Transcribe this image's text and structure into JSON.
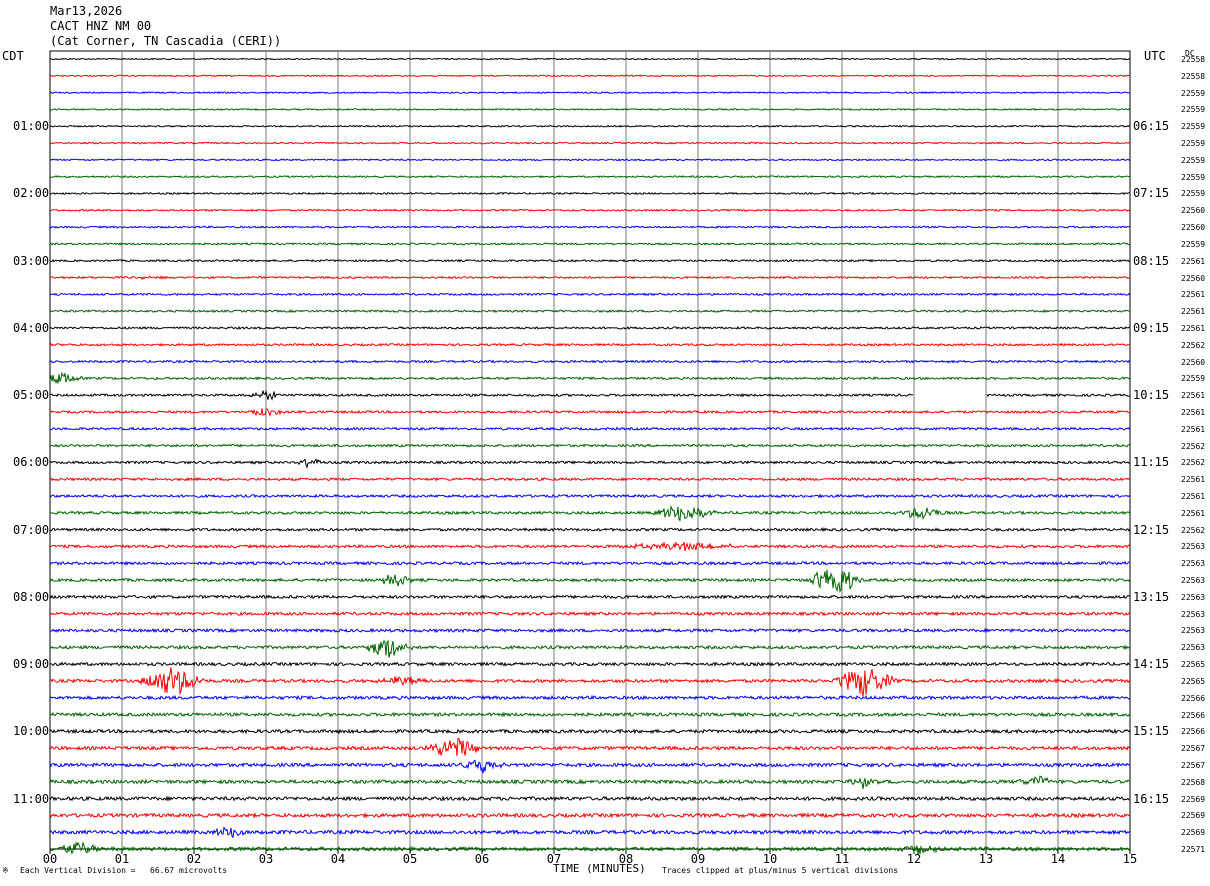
{
  "header": {
    "date": "Mar13,2026",
    "channel": "CACT HNZ NM 00",
    "station": "(Cat Corner, TN Cascadia (CERI))"
  },
  "left_zone": "CDT",
  "right_zone": "UTC",
  "dc_header": "DC",
  "left_time_labels": [
    "01:00",
    "02:00",
    "03:00",
    "04:00",
    "05:00",
    "06:00",
    "07:00",
    "08:00",
    "09:00",
    "10:00",
    "11:00"
  ],
  "right_time_labels": [
    "06:15",
    "07:15",
    "08:15",
    "09:15",
    "10:15",
    "11:15",
    "12:15",
    "13:15",
    "14:15",
    "15:15",
    "16:15"
  ],
  "dc_values": [
    "22558",
    "22558",
    "22559",
    "22559",
    "22559",
    "22559",
    "22559",
    "22559",
    "22559",
    "22560",
    "22560",
    "22559",
    "22561",
    "22560",
    "22561",
    "22561",
    "22561",
    "22562",
    "22560",
    "22559",
    "22561",
    "22561",
    "22561",
    "22562",
    "22562",
    "22561",
    "22561",
    "22561",
    "22562",
    "22563",
    "22563",
    "22563",
    "22563",
    "22563",
    "22563",
    "22563",
    "22565",
    "22565",
    "22566",
    "22566",
    "22566",
    "22567",
    "22567",
    "22568",
    "22569",
    "22569",
    "22569",
    "22571"
  ],
  "footer": {
    "scale_note": "Each Vertical Division =   66.67 microvolts",
    "xlabel": "TIME (MINUTES)",
    "clip_note": "Traces clipped at plus/minus 5 vertical divisions"
  },
  "trace_colors": [
    "#000000",
    "#ff0000",
    "#0000ff",
    "#006400"
  ],
  "chart_data": {
    "type": "line",
    "title": "CACT HNZ NM 00",
    "xlabel": "TIME (MINUTES)",
    "ylabel": "",
    "xlim": [
      0,
      15
    ],
    "x_ticks": [
      "00",
      "01",
      "02",
      "03",
      "04",
      "05",
      "06",
      "07",
      "08",
      "09",
      "10",
      "11",
      "12",
      "13",
      "14",
      "15"
    ],
    "rows": 48,
    "minutes_per_row": 15,
    "grid": true,
    "events": [
      {
        "row": 13,
        "minute": 1.4,
        "amp": 0.3,
        "dur": 0.25
      },
      {
        "row": 19,
        "minute": 0.1,
        "amp": 0.9,
        "dur": 0.4
      },
      {
        "row": 20,
        "minute": 3.0,
        "amp": 0.6,
        "dur": 0.3
      },
      {
        "row": 21,
        "minute": 3.0,
        "amp": 0.5,
        "dur": 0.3
      },
      {
        "row": 24,
        "minute": 3.6,
        "amp": 0.7,
        "dur": 0.2
      },
      {
        "row": 27,
        "minute": 8.8,
        "amp": 1.2,
        "dur": 0.5
      },
      {
        "row": 27,
        "minute": 12.1,
        "amp": 0.9,
        "dur": 0.4
      },
      {
        "row": 29,
        "minute": 8.8,
        "amp": 0.5,
        "dur": 1.0
      },
      {
        "row": 31,
        "minute": 10.9,
        "amp": 2.2,
        "dur": 0.4
      },
      {
        "row": 31,
        "minute": 4.8,
        "amp": 0.8,
        "dur": 0.3
      },
      {
        "row": 35,
        "minute": 4.7,
        "amp": 1.3,
        "dur": 0.4
      },
      {
        "row": 37,
        "minute": 1.7,
        "amp": 2.0,
        "dur": 0.5
      },
      {
        "row": 37,
        "minute": 11.3,
        "amp": 2.0,
        "dur": 0.5
      },
      {
        "row": 37,
        "minute": 4.9,
        "amp": 0.6,
        "dur": 0.4
      },
      {
        "row": 41,
        "minute": 5.6,
        "amp": 1.4,
        "dur": 0.5
      },
      {
        "row": 42,
        "minute": 6.0,
        "amp": 1.0,
        "dur": 0.4
      },
      {
        "row": 43,
        "minute": 11.3,
        "amp": 0.8,
        "dur": 0.3
      },
      {
        "row": 43,
        "minute": 13.7,
        "amp": 0.7,
        "dur": 0.3
      },
      {
        "row": 46,
        "minute": 2.5,
        "amp": 0.8,
        "dur": 0.3
      },
      {
        "row": 47,
        "minute": 0.4,
        "amp": 1.0,
        "dur": 0.3
      },
      {
        "row": 47,
        "minute": 12.1,
        "amp": 0.8,
        "dur": 0.3
      }
    ],
    "gap": {
      "row": 20,
      "start_minute": 12.0,
      "end_minute": 13.0
    }
  }
}
